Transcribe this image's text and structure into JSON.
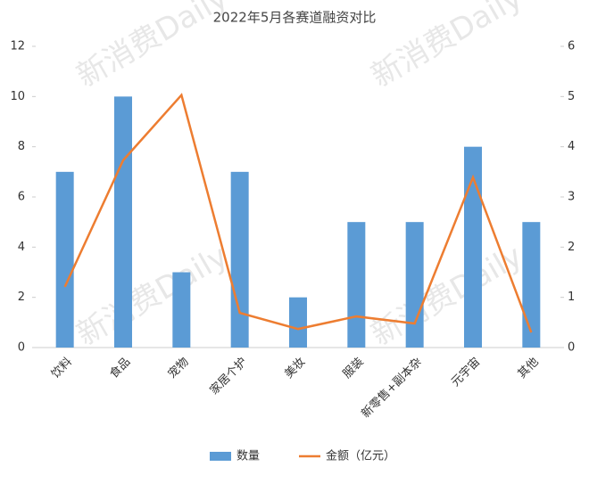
{
  "chart_data": {
    "type": "combo",
    "title": "2022年5月各赛道融资对比",
    "watermark": "新消费Daily",
    "categories": [
      "饮料",
      "食品",
      "宠物",
      "家居个护",
      "美妆",
      "服装",
      "新零售+副本杂",
      "元宇宙",
      "其他"
    ],
    "series": [
      {
        "name": "数量",
        "type": "bar",
        "color": "#5b9bd5",
        "values": [
          7,
          10,
          3,
          7,
          2,
          5,
          5,
          8,
          5
        ]
      },
      {
        "name": "金额（亿元）",
        "type": "line",
        "axis": "y2",
        "color": "#ed7d31",
        "values": [
          1.21,
          3.73,
          5.03,
          0.69,
          0.37,
          0.62,
          0.48,
          3.39,
          0.3
        ]
      }
    ],
    "ylim": [
      0,
      12
    ],
    "yticks": [
      0,
      2,
      4,
      6,
      8,
      10,
      12
    ],
    "y2lim": [
      0,
      6
    ],
    "y2ticks": [
      0,
      1,
      2,
      3,
      4,
      5,
      6
    ],
    "legend": "bottom"
  }
}
